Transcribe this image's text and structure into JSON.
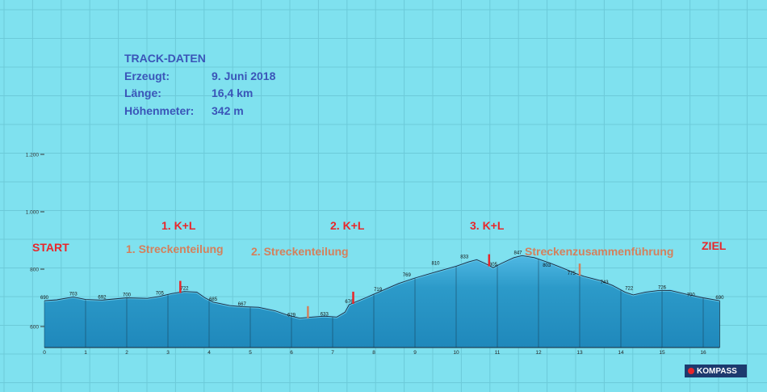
{
  "track": {
    "heading": "TRACK-DATEN",
    "created_label": "Erzeugt:",
    "created_value": "9. Juni 2018",
    "length_label": "Länge:",
    "length_value": "16,4 km",
    "elev_label": "Höhenmeter:",
    "elev_value": "342 m"
  },
  "markers": {
    "start": "START",
    "finish": "ZIEL",
    "kl1": "1. K+L",
    "kl2": "2. K+L",
    "kl3": "3. K+L",
    "split1": "1. Streckenteilung",
    "split2": "2. Streckenteilung",
    "merge": "Streckenzusammenführung"
  },
  "logo": {
    "text": "KOMPASS"
  },
  "colors": {
    "background": "#7fe1ef",
    "profile_fill": "#2c9ac9",
    "profile_top": "#6dd0f0",
    "red_marker": "#e8262a",
    "orange_marker": "#d3805c"
  },
  "chart_data": {
    "type": "area",
    "xlabel": "",
    "ylabel": "",
    "xlim": [
      0,
      16.4
    ],
    "ylim": [
      530,
      1300
    ],
    "x_ticks": [
      0,
      1,
      2,
      3,
      4,
      5,
      6,
      7,
      8,
      9,
      10,
      11,
      12,
      13,
      14,
      15,
      16
    ],
    "y_ticks": [
      {
        "value": 600,
        "label": "600"
      },
      {
        "value": 800,
        "label": "800"
      },
      {
        "value": 1000,
        "label": "1.000"
      },
      {
        "value": 1200,
        "label": "1.200"
      }
    ],
    "grid": true,
    "profile": [
      [
        0.0,
        690
      ],
      [
        0.3,
        693
      ],
      [
        0.7,
        703
      ],
      [
        1.0,
        694
      ],
      [
        1.4,
        692
      ],
      [
        2.0,
        700
      ],
      [
        2.5,
        698
      ],
      [
        2.8,
        705
      ],
      [
        3.1,
        715
      ],
      [
        3.4,
        722
      ],
      [
        3.7,
        720
      ],
      [
        3.9,
        700
      ],
      [
        4.1,
        685
      ],
      [
        4.5,
        673
      ],
      [
        4.8,
        669
      ],
      [
        5.2,
        667
      ],
      [
        5.6,
        655
      ],
      [
        5.9,
        640
      ],
      [
        6.2,
        629
      ],
      [
        6.5,
        633
      ],
      [
        6.8,
        636
      ],
      [
        7.1,
        633
      ],
      [
        7.3,
        650
      ],
      [
        7.4,
        676
      ],
      [
        7.8,
        700
      ],
      [
        8.1,
        719
      ],
      [
        8.6,
        750
      ],
      [
        9.0,
        769
      ],
      [
        9.5,
        790
      ],
      [
        10.0,
        810
      ],
      [
        10.3,
        825
      ],
      [
        10.5,
        833
      ],
      [
        10.7,
        820
      ],
      [
        10.9,
        805
      ],
      [
        11.1,
        820
      ],
      [
        11.4,
        840
      ],
      [
        11.6,
        847
      ],
      [
        11.9,
        840
      ],
      [
        12.3,
        820
      ],
      [
        12.6,
        803
      ],
      [
        12.9,
        785
      ],
      [
        13.1,
        775
      ],
      [
        13.5,
        760
      ],
      [
        13.8,
        743
      ],
      [
        14.1,
        720
      ],
      [
        14.3,
        710
      ],
      [
        14.6,
        720
      ],
      [
        14.9,
        725
      ],
      [
        15.2,
        726
      ],
      [
        15.6,
        712
      ],
      [
        16.0,
        700
      ],
      [
        16.4,
        690
      ]
    ],
    "value_labels": [
      {
        "x": 0.0,
        "y": 690,
        "label": "690"
      },
      {
        "x": 0.7,
        "y": 703,
        "label": "703"
      },
      {
        "x": 1.4,
        "y": 692,
        "label": "692"
      },
      {
        "x": 2.0,
        "y": 700,
        "label": "700"
      },
      {
        "x": 2.8,
        "y": 705,
        "label": "705"
      },
      {
        "x": 3.4,
        "y": 722,
        "label": "722"
      },
      {
        "x": 4.1,
        "y": 685,
        "label": "685"
      },
      {
        "x": 4.8,
        "y": 667,
        "label": "667"
      },
      {
        "x": 6.0,
        "y": 629,
        "label": "629"
      },
      {
        "x": 6.8,
        "y": 633,
        "label": "633"
      },
      {
        "x": 7.4,
        "y": 676,
        "label": "676"
      },
      {
        "x": 8.1,
        "y": 719,
        "label": "719"
      },
      {
        "x": 8.8,
        "y": 769,
        "label": "769"
      },
      {
        "x": 9.5,
        "y": 810,
        "label": "810"
      },
      {
        "x": 10.2,
        "y": 833,
        "label": "833"
      },
      {
        "x": 10.9,
        "y": 805,
        "label": "805"
      },
      {
        "x": 11.5,
        "y": 847,
        "label": "847"
      },
      {
        "x": 12.2,
        "y": 803,
        "label": "803"
      },
      {
        "x": 12.8,
        "y": 775,
        "label": "775"
      },
      {
        "x": 13.6,
        "y": 743,
        "label": "743"
      },
      {
        "x": 14.2,
        "y": 722,
        "label": "722"
      },
      {
        "x": 15.0,
        "y": 726,
        "label": "726"
      },
      {
        "x": 15.7,
        "y": 700,
        "label": "700"
      },
      {
        "x": 16.4,
        "y": 690,
        "label": "690"
      }
    ],
    "event_marks": [
      {
        "x": 3.3,
        "kind": "red"
      },
      {
        "x": 6.4,
        "kind": "orange"
      },
      {
        "x": 7.5,
        "kind": "red"
      },
      {
        "x": 10.8,
        "kind": "red"
      },
      {
        "x": 13.0,
        "kind": "orange"
      }
    ]
  }
}
